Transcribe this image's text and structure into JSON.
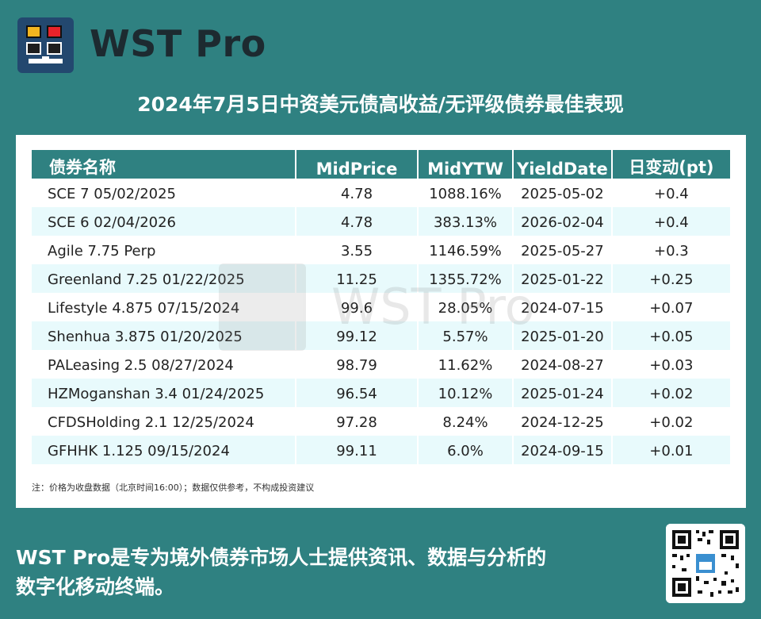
{
  "brand": {
    "name": "WST Pro"
  },
  "title": "2024年7月5日中资美元债高收益/无评级债券最佳表现",
  "table": {
    "headers": [
      "债券名称",
      "MidPrice",
      "MidYTW",
      "YieldDate",
      "日变动(pt)"
    ],
    "rows": [
      [
        "SCE 7 05/02/2025",
        "4.78",
        "1088.16%",
        "2025-05-02",
        "+0.4"
      ],
      [
        "SCE 6 02/04/2026",
        "4.78",
        "383.13%",
        "2026-02-04",
        "+0.4"
      ],
      [
        "Agile 7.75 Perp",
        "3.55",
        "1146.59%",
        "2025-05-27",
        "+0.3"
      ],
      [
        "Greenland 7.25 01/22/2025",
        "11.25",
        "1355.72%",
        "2025-01-22",
        "+0.25"
      ],
      [
        "Lifestyle 4.875 07/15/2024",
        "99.6",
        "28.05%",
        "2024-07-15",
        "+0.07"
      ],
      [
        "Shenhua 3.875 01/20/2025",
        "99.12",
        "5.57%",
        "2025-01-20",
        "+0.05"
      ],
      [
        "PALeasing 2.5 08/27/2024",
        "98.79",
        "11.62%",
        "2024-08-27",
        "+0.03"
      ],
      [
        "HZMoganshan 3.4 01/24/2025",
        "96.54",
        "10.12%",
        "2025-01-24",
        "+0.02"
      ],
      [
        "CFDSHolding 2.1 12/25/2024",
        "97.28",
        "8.24%",
        "2024-12-25",
        "+0.02"
      ],
      [
        "GFHHK 1.125 09/15/2024",
        "99.11",
        "6.0%",
        "2024-09-15",
        "+0.01"
      ]
    ]
  },
  "note": "注：价格为收盘数据（北京时间16:00）；数据仅供参考，不构成投资建议",
  "footer": {
    "line1": "WST Pro是专为境外债券市场人士提供资讯、数据与分析的",
    "line2": "数字化移动终端。"
  },
  "watermark": {
    "text": "WST Pro"
  },
  "colors": {
    "background": "#2f8181",
    "header": "#2f8181",
    "alt_row": "#e8fafc",
    "brand_icon": "#23486f"
  }
}
